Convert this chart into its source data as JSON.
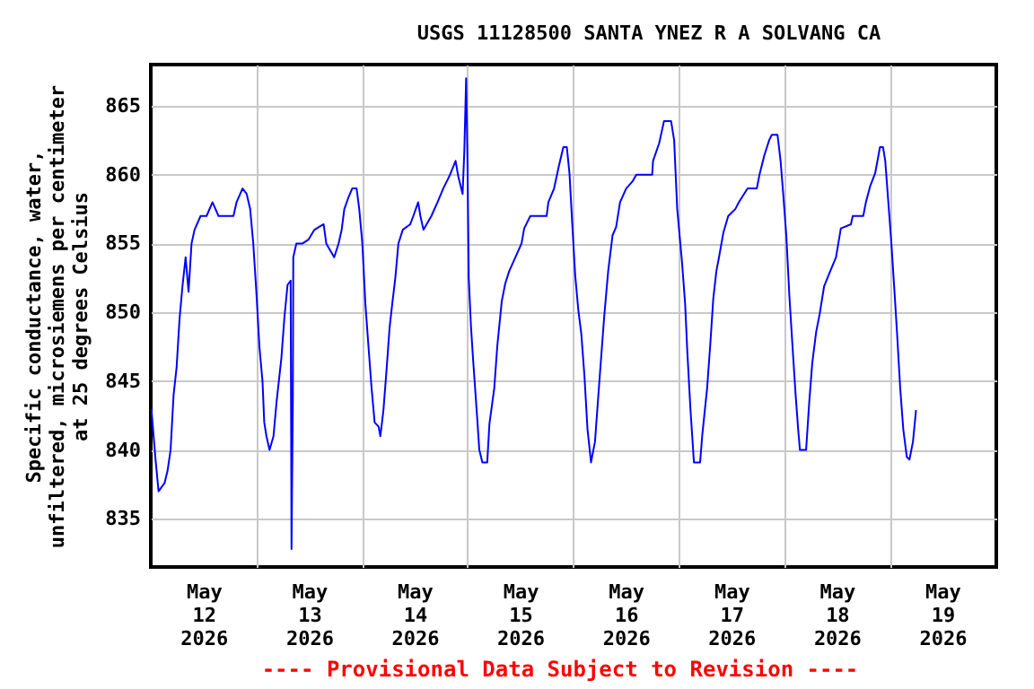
{
  "chart_data": {
    "type": "line",
    "title": "USGS 11128500 SANTA YNEZ R A SOLVANG CA",
    "ylabel": "Specific conductance, water,\nunfiltered, microsiemens per centimeter\nat 25 degrees Celsius",
    "annotations": [
      "---- Provisional Data Subject to Revision ----"
    ],
    "xlim": [
      "2026-05-12T00:00",
      "2026-05-20T00:15"
    ],
    "xticks": [
      {
        "value": "2026-05-12T12:00",
        "label": "May\n12\n2026"
      },
      {
        "value": "2026-05-13T00:00",
        "label": null
      },
      {
        "value": "2026-05-13T12:00",
        "label": "May\n13\n2026"
      },
      {
        "value": "2026-05-14T00:00",
        "label": null
      },
      {
        "value": "2026-05-14T12:00",
        "label": "May\n14\n2026"
      },
      {
        "value": "2026-05-15T00:00",
        "label": null
      },
      {
        "value": "2026-05-15T12:00",
        "label": "May\n15\n2026"
      },
      {
        "value": "2026-05-16T00:00",
        "label": null
      },
      {
        "value": "2026-05-16T12:00",
        "label": "May\n16\n2026"
      },
      {
        "value": "2026-05-17T00:00",
        "label": null
      },
      {
        "value": "2026-05-17T12:00",
        "label": "May\n17\n2026"
      },
      {
        "value": "2026-05-18T00:00",
        "label": null
      },
      {
        "value": "2026-05-18T12:00",
        "label": "May\n18\n2026"
      },
      {
        "value": "2026-05-19T00:00",
        "label": null
      },
      {
        "value": "2026-05-19T12:00",
        "label": "May\n19\n2026"
      }
    ],
    "ylim": [
      831.5,
      868
    ],
    "yticks": [
      835,
      840,
      845,
      850,
      855,
      860,
      865
    ],
    "grid": true,
    "series": [
      {
        "color": "#0000ff",
        "x": [
          "2026-05-12T00:08",
          "2026-05-12T01:05",
          "2026-05-12T01:46",
          "2026-05-12T03:08",
          "2026-05-12T03:49",
          "2026-05-12T04:30",
          "2026-05-12T05:11",
          "2026-05-12T05:52",
          "2026-05-12T06:32",
          "2026-05-12T07:14",
          "2026-05-12T07:55",
          "2026-05-12T08:35",
          "2026-05-12T09:16",
          "2026-05-12T09:57",
          "2026-05-12T11:19",
          "2026-05-12T12:41",
          "2026-05-12T14:02",
          "2026-05-12T15:24",
          "2026-05-12T18:48",
          "2026-05-12T19:30",
          "2026-05-12T20:52",
          "2026-05-12T21:48",
          "2026-05-12T22:36",
          "2026-05-12T23:18",
          "2026-05-13T00:00",
          "2026-05-13T00:42",
          "2026-05-13T01:24",
          "2026-05-13T01:48",
          "2026-05-13T02:18",
          "2026-05-13T03:00",
          "2026-05-13T03:54",
          "2026-05-13T04:36",
          "2026-05-13T05:42",
          "2026-05-13T06:24",
          "2026-05-13T07:06",
          "2026-05-13T07:48",
          "2026-05-13T08:00",
          "2026-05-13T08:18",
          "2026-05-13T08:24",
          "2026-05-13T09:06",
          "2026-05-13T10:30",
          "2026-05-13T11:54",
          "2026-05-13T13:12",
          "2026-05-13T15:18",
          "2026-05-13T15:54",
          "2026-05-13T17:42",
          "2026-05-13T18:42",
          "2026-05-13T19:24",
          "2026-05-13T20:00",
          "2026-05-13T21:00",
          "2026-05-13T21:48",
          "2026-05-13T22:48",
          "2026-05-13T23:24",
          "2026-05-14T00:06",
          "2026-05-14T00:48",
          "2026-05-14T01:30",
          "2026-05-14T02:12",
          "2026-05-14T02:54",
          "2026-05-14T03:48",
          "2026-05-14T04:12",
          "2026-05-14T04:54",
          "2026-05-14T05:36",
          "2026-05-14T06:18",
          "2026-05-14T06:54",
          "2026-05-14T07:36",
          "2026-05-14T08:18",
          "2026-05-14T09:18",
          "2026-05-14T11:00",
          "2026-05-14T11:42",
          "2026-05-14T12:48",
          "2026-05-14T13:18",
          "2026-05-14T14:00",
          "2026-05-14T15:48",
          "2026-05-14T17:12",
          "2026-05-14T18:30",
          "2026-05-14T19:54",
          "2026-05-14T21:18",
          "2026-05-14T21:54",
          "2026-05-14T22:54",
          "2026-05-14T23:18",
          "2026-05-14T23:42",
          "2026-05-15T00:00",
          "2026-05-15T00:18",
          "2026-05-15T00:48",
          "2026-05-15T01:18",
          "2026-05-15T02:12",
          "2026-05-15T02:42",
          "2026-05-15T03:24",
          "2026-05-15T04:30",
          "2026-05-15T05:00",
          "2026-05-15T06:06",
          "2026-05-15T06:48",
          "2026-05-15T07:48",
          "2026-05-15T08:36",
          "2026-05-15T09:30",
          "2026-05-15T10:54",
          "2026-05-15T12:18",
          "2026-05-15T12:54",
          "2026-05-15T14:18",
          "2026-05-15T18:00",
          "2026-05-15T18:24",
          "2026-05-15T19:42",
          "2026-05-15T20:42",
          "2026-05-15T21:48",
          "2026-05-15T22:36",
          "2026-05-15T23:12",
          "2026-05-15T23:48",
          "2026-05-16T00:30",
          "2026-05-16T01:12",
          "2026-05-16T01:54",
          "2026-05-16T02:36",
          "2026-05-16T03:18",
          "2026-05-16T04:06",
          "2026-05-16T05:00",
          "2026-05-16T06:00",
          "2026-05-16T07:06",
          "2026-05-16T08:00",
          "2026-05-16T09:00",
          "2026-05-16T09:48",
          "2026-05-16T10:42",
          "2026-05-16T12:06",
          "2026-05-16T13:30",
          "2026-05-16T14:24",
          "2026-05-16T18:00",
          "2026-05-16T18:12",
          "2026-05-16T19:36",
          "2026-05-16T20:42",
          "2026-05-16T22:18",
          "2026-05-16T23:00",
          "2026-05-16T23:42",
          "2026-05-17T00:48",
          "2026-05-17T01:30",
          "2026-05-17T02:00",
          "2026-05-17T02:42",
          "2026-05-17T03:30",
          "2026-05-17T04:54",
          "2026-05-17T05:24",
          "2026-05-17T06:30",
          "2026-05-17T07:12",
          "2026-05-17T07:54",
          "2026-05-17T08:36",
          "2026-05-17T09:12",
          "2026-05-17T10:12",
          "2026-05-17T11:18",
          "2026-05-17T12:54",
          "2026-05-17T13:42",
          "2026-05-17T15:42",
          "2026-05-17T17:48",
          "2026-05-17T18:24",
          "2026-05-17T19:30",
          "2026-05-17T20:36",
          "2026-05-17T21:12",
          "2026-05-17T22:30",
          "2026-05-17T23:12",
          "2026-05-17T23:48",
          "2026-05-18T00:30",
          "2026-05-18T01:12",
          "2026-05-18T01:54",
          "2026-05-18T02:36",
          "2026-05-18T03:12",
          "2026-05-18T03:36",
          "2026-05-18T05:00",
          "2026-05-18T05:42",
          "2026-05-18T06:24",
          "2026-05-18T07:18",
          "2026-05-18T08:06",
          "2026-05-18T09:06",
          "2026-05-18T10:30",
          "2026-05-18T11:48",
          "2026-05-18T12:54",
          "2026-05-18T15:12",
          "2026-05-18T15:36",
          "2026-05-18T18:00",
          "2026-05-18T18:36",
          "2026-05-18T19:36",
          "2026-05-18T20:42",
          "2026-05-18T21:48",
          "2026-05-18T22:30",
          "2026-05-18T23:00",
          "2026-05-18T23:42",
          "2026-05-19T00:24",
          "2026-05-19T01:06",
          "2026-05-19T01:42",
          "2026-05-19T02:24",
          "2026-05-19T03:06",
          "2026-05-19T03:54",
          "2026-05-19T04:30",
          "2026-05-19T05:18",
          "2026-05-19T06:00"
        ],
        "values": [
          843,
          839.3,
          837,
          837.6,
          838.5,
          840,
          844,
          846,
          849.5,
          852,
          854,
          851.5,
          855,
          856,
          857,
          857,
          858,
          857,
          857,
          858,
          859,
          858.6,
          857.5,
          855,
          851.5,
          847.5,
          845,
          842,
          841,
          840,
          841,
          843.5,
          846.7,
          849.7,
          852,
          852.3,
          832.8,
          843.6,
          854,
          855,
          855,
          855.3,
          856,
          856.4,
          855,
          854,
          855,
          856,
          857.5,
          858.4,
          859,
          859,
          857.5,
          855,
          850.6,
          847.5,
          844.5,
          842,
          841.7,
          841,
          842.9,
          845.8,
          848.9,
          850.6,
          852.5,
          855,
          856,
          856.4,
          857,
          858,
          857,
          856,
          857,
          858,
          859,
          859.9,
          861,
          859.9,
          858.6,
          861.8,
          867,
          861.2,
          852.5,
          849,
          846.5,
          842.4,
          840,
          839.1,
          839.1,
          841.9,
          844.5,
          847.6,
          850.8,
          852.1,
          853,
          854,
          855,
          856.1,
          857,
          857,
          858,
          859,
          860.5,
          862,
          862,
          860.1,
          856.6,
          852.7,
          850.2,
          848.4,
          845.4,
          841.5,
          839.1,
          840.6,
          845,
          849.7,
          853,
          855.6,
          856.2,
          858,
          859,
          859.5,
          860,
          860,
          861,
          862.3,
          863.9,
          863.9,
          862.5,
          857.5,
          853.6,
          850.6,
          847.1,
          843,
          839.1,
          839.1,
          841.1,
          844.5,
          847.6,
          851,
          853,
          854,
          855.8,
          857,
          857.5,
          858,
          859,
          859,
          860,
          861.4,
          862.5,
          862.9,
          862.9,
          861,
          858.6,
          855.6,
          851.2,
          847.6,
          844.1,
          841.5,
          840,
          840,
          843.4,
          846.3,
          848.6,
          849.9,
          851.9,
          853,
          854,
          856.1,
          856.4,
          857,
          857,
          858,
          859.2,
          860.1,
          862,
          862,
          861,
          858,
          855,
          851.5,
          848.4,
          844.5,
          841.5,
          839.5,
          839.3,
          840.6,
          842.9
        ]
      }
    ]
  }
}
